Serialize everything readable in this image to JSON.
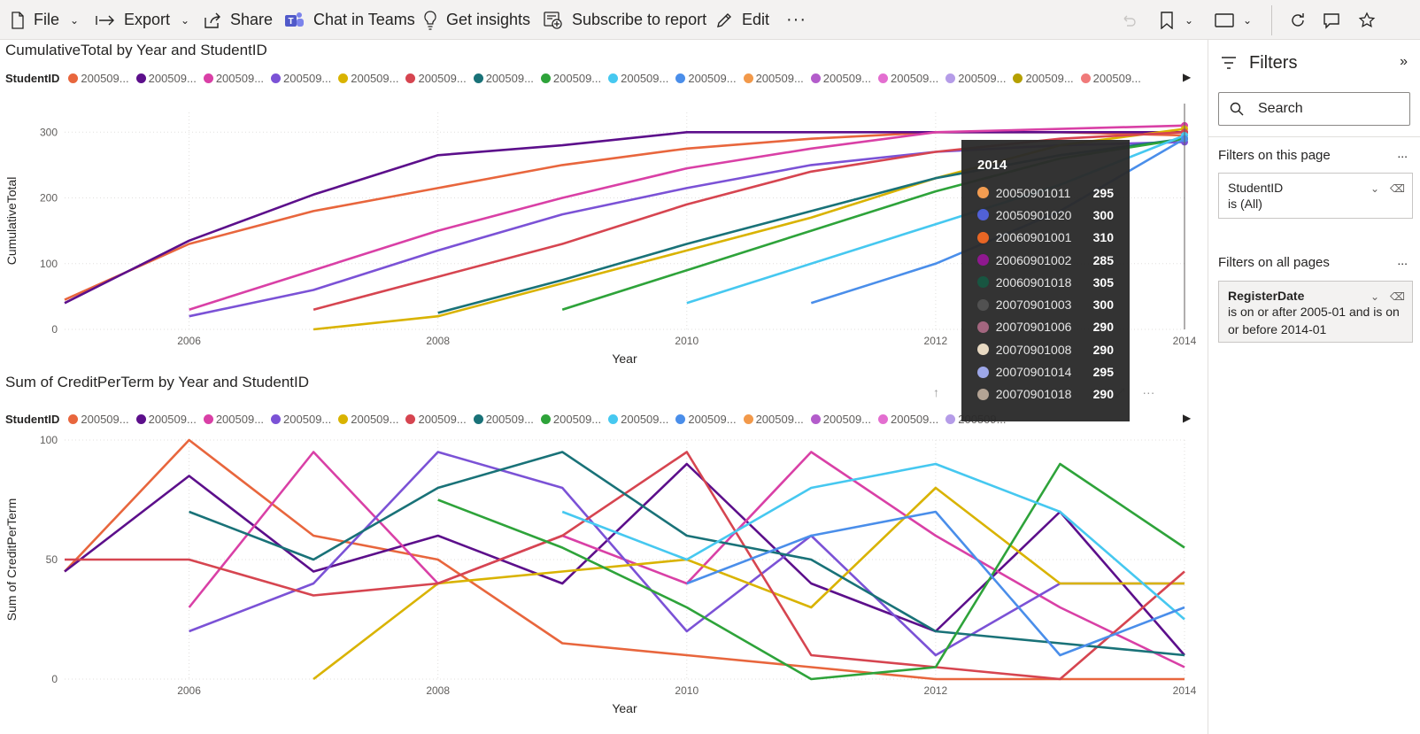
{
  "toolbar": {
    "file": "File",
    "export": "Export",
    "share": "Share",
    "chat_in_teams": "Chat in Teams",
    "get_insights": "Get insights",
    "subscribe": "Subscribe to report",
    "edit": "Edit",
    "more": "···"
  },
  "colors": {
    "accent": "#5059c9",
    "toolbar_bg": "#f3f2f1",
    "tooltip_bg": "#2b2b2b"
  },
  "chart1": {
    "title": "CumulativeTotal by Year and StudentID",
    "legend_title": "StudentID",
    "legend_items": [
      {
        "label": "200509...",
        "color": "#e8663d"
      },
      {
        "label": "200509...",
        "color": "#5c0f8b"
      },
      {
        "label": "200509...",
        "color": "#d940a6"
      },
      {
        "label": "200509...",
        "color": "#7b52d6"
      },
      {
        "label": "200509...",
        "color": "#d9b300"
      },
      {
        "label": "200509...",
        "color": "#d64550"
      },
      {
        "label": "200509...",
        "color": "#197278"
      },
      {
        "label": "200509...",
        "color": "#2ea33a"
      },
      {
        "label": "200509...",
        "color": "#46c8f0"
      },
      {
        "label": "200509...",
        "color": "#4a8eea"
      },
      {
        "label": "200509...",
        "color": "#f2994a"
      },
      {
        "label": "200509...",
        "color": "#b35ccb"
      },
      {
        "label": "200509...",
        "color": "#e36ed0"
      },
      {
        "label": "200509...",
        "color": "#b59ce8"
      },
      {
        "label": "200509...",
        "color": "#b5a000"
      },
      {
        "label": "200509...",
        "color": "#f07a7a"
      }
    ]
  },
  "chart2": {
    "title": "Sum of CreditPerTerm by Year and StudentID",
    "legend_title": "StudentID",
    "legend_items": [
      {
        "label": "200509...",
        "color": "#e8663d"
      },
      {
        "label": "200509...",
        "color": "#5c0f8b"
      },
      {
        "label": "200509...",
        "color": "#d940a6"
      },
      {
        "label": "200509...",
        "color": "#7b52d6"
      },
      {
        "label": "200509...",
        "color": "#d9b300"
      },
      {
        "label": "200509...",
        "color": "#d64550"
      },
      {
        "label": "200509...",
        "color": "#197278"
      },
      {
        "label": "200509...",
        "color": "#2ea33a"
      },
      {
        "label": "200509...",
        "color": "#46c8f0"
      },
      {
        "label": "200509...",
        "color": "#4a8eea"
      },
      {
        "label": "200509...",
        "color": "#f2994a"
      },
      {
        "label": "200509...",
        "color": "#b35ccb"
      },
      {
        "label": "200509...",
        "color": "#e36ed0"
      },
      {
        "label": "200509...",
        "color": "#b59ce8"
      }
    ]
  },
  "chart_data": [
    {
      "type": "line",
      "title": "CumulativeTotal by Year and StudentID",
      "xlabel": "Year",
      "ylabel": "CumulativeTotal",
      "xlim": [
        2005,
        2014
      ],
      "ylim": [
        0,
        330
      ],
      "x_ticks": [
        "2006",
        "2008",
        "2010",
        "2012",
        "2014"
      ],
      "y_ticks": [
        "0",
        "100",
        "200",
        "300"
      ],
      "grid": true,
      "legend_position": "top",
      "series": [
        {
          "x": [
            2005,
            2006,
            2007,
            2008,
            2009,
            2010,
            2011,
            2012,
            2013,
            2014
          ],
          "values": [
            45,
            130,
            180,
            215,
            250,
            275,
            290,
            300,
            300,
            295
          ]
        },
        {
          "x": [
            2005,
            2006,
            2007,
            2008,
            2009,
            2010,
            2011,
            2012,
            2013,
            2014
          ],
          "values": [
            40,
            135,
            205,
            265,
            280,
            300,
            300,
            300,
            300,
            300
          ]
        },
        {
          "x": [
            2006,
            2007,
            2008,
            2009,
            2010,
            2011,
            2012,
            2013,
            2014
          ],
          "values": [
            30,
            90,
            150,
            200,
            245,
            275,
            300,
            305,
            310
          ]
        },
        {
          "x": [
            2006,
            2007,
            2008,
            2009,
            2010,
            2011,
            2012,
            2013,
            2014
          ],
          "values": [
            20,
            60,
            120,
            175,
            215,
            250,
            270,
            280,
            285
          ]
        },
        {
          "x": [
            2007,
            2008,
            2009,
            2010,
            2011,
            2012,
            2013,
            2014
          ],
          "values": [
            0,
            20,
            70,
            120,
            170,
            230,
            280,
            305
          ]
        },
        {
          "x": [
            2007,
            2008,
            2009,
            2010,
            2011,
            2012,
            2013,
            2014
          ],
          "values": [
            30,
            80,
            130,
            190,
            240,
            270,
            290,
            300
          ]
        },
        {
          "x": [
            2008,
            2009,
            2010,
            2011,
            2012,
            2013,
            2014
          ],
          "values": [
            25,
            75,
            130,
            180,
            230,
            265,
            290
          ]
        },
        {
          "x": [
            2009,
            2010,
            2011,
            2012,
            2013,
            2014
          ],
          "values": [
            30,
            90,
            150,
            210,
            260,
            290
          ]
        },
        {
          "x": [
            2010,
            2011,
            2012,
            2013,
            2014
          ],
          "values": [
            40,
            100,
            160,
            220,
            295
          ]
        },
        {
          "x": [
            2011,
            2012,
            2013,
            2014
          ],
          "values": [
            40,
            100,
            180,
            290
          ]
        }
      ]
    },
    {
      "type": "line",
      "title": "Sum of CreditPerTerm by Year and StudentID",
      "xlabel": "Year",
      "ylabel": "Sum of CreditPerTerm",
      "xlim": [
        2005,
        2014
      ],
      "ylim": [
        0,
        100
      ],
      "x_ticks": [
        "2006",
        "2008",
        "2010",
        "2012",
        "2014"
      ],
      "y_ticks": [
        "0",
        "50",
        "100"
      ],
      "grid": true,
      "legend_position": "top",
      "series": [
        {
          "x": [
            2005,
            2006,
            2007,
            2008,
            2009,
            2010,
            2011,
            2012,
            2013,
            2014
          ],
          "values": [
            45,
            100,
            60,
            50,
            15,
            10,
            5,
            0,
            0,
            0
          ]
        },
        {
          "x": [
            2005,
            2006,
            2007,
            2008,
            2009,
            2010,
            2011,
            2012,
            2013,
            2014
          ],
          "values": [
            45,
            85,
            45,
            60,
            40,
            90,
            40,
            20,
            70,
            10
          ]
        },
        {
          "x": [
            2006,
            2007,
            2008,
            2009,
            2010,
            2011,
            2012,
            2013,
            2014
          ],
          "values": [
            30,
            95,
            40,
            60,
            40,
            95,
            60,
            30,
            5
          ]
        },
        {
          "x": [
            2006,
            2007,
            2008,
            2009,
            2010,
            2011,
            2012,
            2013,
            2014
          ],
          "values": [
            20,
            40,
            95,
            80,
            20,
            60,
            10,
            40,
            40
          ]
        },
        {
          "x": [
            2007,
            2008,
            2009,
            2010,
            2011,
            2012,
            2013,
            2014
          ],
          "values": [
            0,
            40,
            45,
            50,
            30,
            80,
            40,
            40
          ]
        },
        {
          "x": [
            2005,
            2006,
            2007,
            2008,
            2009,
            2010,
            2011,
            2012,
            2013,
            2014
          ],
          "values": [
            50,
            50,
            35,
            40,
            60,
            95,
            10,
            5,
            0,
            45
          ]
        },
        {
          "x": [
            2006,
            2007,
            2008,
            2009,
            2010,
            2011,
            2012,
            2013,
            2014
          ],
          "values": [
            70,
            50,
            80,
            95,
            60,
            50,
            20,
            15,
            10
          ]
        },
        {
          "x": [
            2008,
            2009,
            2010,
            2011,
            2012,
            2013,
            2014
          ],
          "values": [
            75,
            55,
            30,
            0,
            5,
            90,
            55
          ]
        },
        {
          "x": [
            2009,
            2010,
            2011,
            2012,
            2013,
            2014
          ],
          "values": [
            70,
            50,
            80,
            90,
            70,
            25
          ]
        },
        {
          "x": [
            2010,
            2011,
            2012,
            2013,
            2014
          ],
          "values": [
            40,
            60,
            70,
            10,
            30
          ]
        }
      ]
    }
  ],
  "tooltip": {
    "header": "2014",
    "rows": [
      {
        "id": "20050901011",
        "value": "295",
        "color": "#f2994a"
      },
      {
        "id": "20050901020",
        "value": "300",
        "color": "#4a5bd6"
      },
      {
        "id": "20060901001",
        "value": "310",
        "color": "#e8601c"
      },
      {
        "id": "20060901002",
        "value": "285",
        "color": "#8b0f8b"
      },
      {
        "id": "20060901018",
        "value": "305",
        "color": "#0f4f3a"
      },
      {
        "id": "20070901003",
        "value": "300",
        "color": "#4a4a4a"
      },
      {
        "id": "20070901006",
        "value": "290",
        "color": "#a0607a"
      },
      {
        "id": "20070901008",
        "value": "290",
        "color": "#e8d8c0"
      },
      {
        "id": "20070901014",
        "value": "295",
        "color": "#9aa4e8"
      },
      {
        "id": "20070901018",
        "value": "290",
        "color": "#b0a090"
      }
    ]
  },
  "filters": {
    "title": "Filters",
    "search_placeholder": "Search",
    "on_this_page": "Filters on this page",
    "on_all_pages": "Filters on all pages",
    "more": "...",
    "page_filter": {
      "name": "StudentID",
      "desc": "is (All)"
    },
    "all_filter": {
      "name": "RegisterDate",
      "desc": "is on or after 2005-01 and is on or before 2014-01"
    }
  }
}
